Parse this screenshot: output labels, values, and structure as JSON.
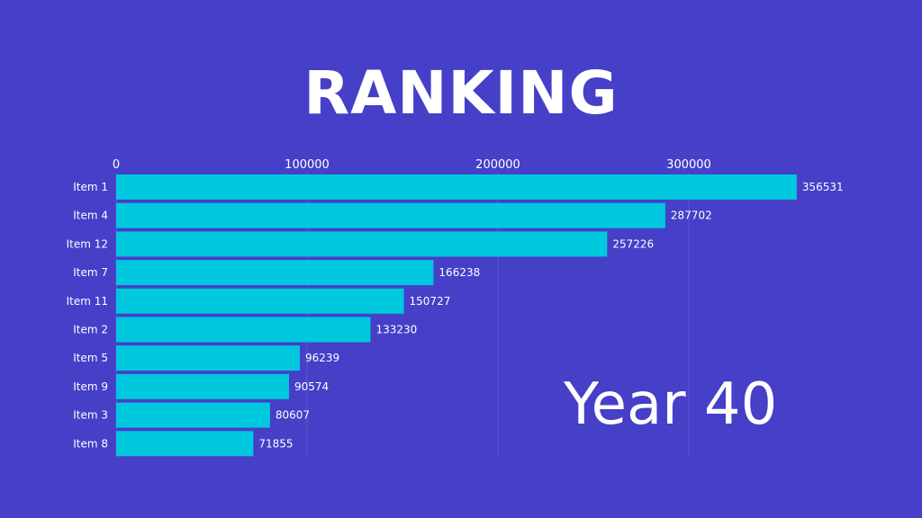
{
  "colors": {
    "background": "#463fc8",
    "bar": "#00c8df",
    "grid": "#5b55d0",
    "text": "#ffffff"
  },
  "chart_data": {
    "type": "bar",
    "orientation": "horizontal",
    "title": "RANKING",
    "annotation": "Year 40",
    "categories": [
      "Item 1",
      "Item 4",
      "Item 12",
      "Item 7",
      "Item 11",
      "Item 2",
      "Item 5",
      "Item 9",
      "Item 3",
      "Item 8"
    ],
    "values": [
      356531,
      287702,
      257226,
      166238,
      150727,
      133230,
      96239,
      90574,
      80607,
      71855
    ],
    "value_labels": [
      "356531",
      "287702",
      "257226",
      "166238",
      "150727",
      "133230",
      "96239",
      "90574",
      "80607",
      "71855"
    ],
    "x_ticks": [
      0,
      100000,
      200000,
      300000
    ],
    "x_tick_labels": [
      "0",
      "100000",
      "200000",
      "300000"
    ],
    "x_axis_position": "top",
    "grid": true,
    "legend": "none"
  }
}
